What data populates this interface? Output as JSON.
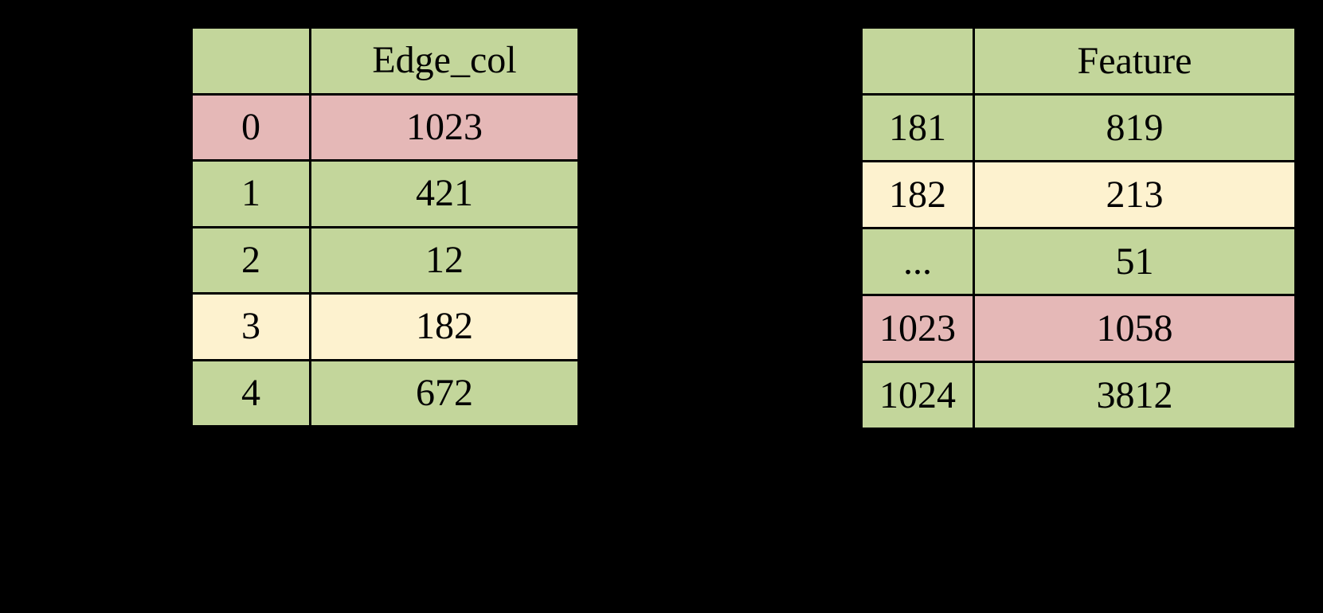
{
  "palette": {
    "background": "#000000",
    "border": "#000000",
    "text": "#000000",
    "green": "#c3d69b",
    "pink": "#e5b8b7",
    "cream": "#fdf2cf"
  },
  "edge_table": {
    "header": {
      "index_label": "",
      "value_label": "Edge_col"
    },
    "rows": [
      {
        "index": "0",
        "value": "1023",
        "highlight": "pink"
      },
      {
        "index": "1",
        "value": "421",
        "highlight": "green"
      },
      {
        "index": "2",
        "value": "12",
        "highlight": "green"
      },
      {
        "index": "3",
        "value": "182",
        "highlight": "cream"
      },
      {
        "index": "4",
        "value": "672",
        "highlight": "green"
      }
    ]
  },
  "feature_table": {
    "header": {
      "index_label": "",
      "value_label": "Feature"
    },
    "rows": [
      {
        "index": "181",
        "value": "819",
        "highlight": "green"
      },
      {
        "index": "182",
        "value": "213",
        "highlight": "cream"
      },
      {
        "index": "...",
        "value": "51",
        "highlight": "green"
      },
      {
        "index": "1023",
        "value": "1058",
        "highlight": "pink"
      },
      {
        "index": "1024",
        "value": "3812",
        "highlight": "green"
      }
    ]
  }
}
